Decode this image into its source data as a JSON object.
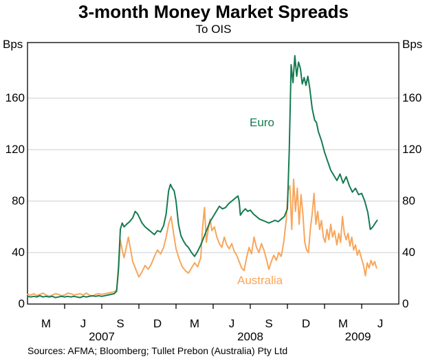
{
  "header": {
    "title": "3-month Money Market Spreads",
    "subtitle": "To OIS"
  },
  "footer": {
    "sources": "Sources: AFMA; Bloomberg; Tullet Prebon (Australia) Pty Ltd"
  },
  "colors": {
    "euro": "#147a50",
    "australia": "#f9a55a",
    "gridline": "#c9ced2",
    "axis": "#000000"
  },
  "chart_data": {
    "type": "line",
    "title": "3-month Money Market Spreads",
    "subtitle": "To OIS",
    "unit_label": "Bps",
    "ylim": [
      0,
      203.2
    ],
    "y_ticks": [
      0,
      40,
      80,
      120,
      160
    ],
    "grid": true,
    "x_axis_note": "x measured in months since Jan 2007; axis spans Jan 2007 to Jul 2009",
    "xlim_months": [
      0,
      30
    ],
    "x_quarter_tick_months": [
      3,
      6,
      9,
      12,
      15,
      18,
      21,
      24,
      27
    ],
    "x_month_labels": [
      {
        "m": 1.5,
        "label": "M"
      },
      {
        "m": 4.5,
        "label": "J"
      },
      {
        "m": 7.5,
        "label": "S"
      },
      {
        "m": 10.5,
        "label": "D"
      },
      {
        "m": 13.5,
        "label": "M"
      },
      {
        "m": 16.5,
        "label": "J"
      },
      {
        "m": 19.5,
        "label": "S"
      },
      {
        "m": 22.5,
        "label": "D"
      },
      {
        "m": 25.5,
        "label": "M"
      },
      {
        "m": 28.5,
        "label": "J"
      }
    ],
    "x_year_labels": [
      {
        "m": 6,
        "label": "2007"
      },
      {
        "m": 18,
        "label": "2008"
      },
      {
        "m": 26.7,
        "label": "2009"
      }
    ],
    "series": [
      {
        "name": "Australia",
        "color": "#f9a55a",
        "points": [
          [
            0,
            7.5
          ],
          [
            0.25,
            7
          ],
          [
            0.5,
            8
          ],
          [
            0.75,
            6.5
          ],
          [
            1,
            7.5
          ],
          [
            1.25,
            8.5
          ],
          [
            1.5,
            7
          ],
          [
            1.75,
            6
          ],
          [
            2,
            7
          ],
          [
            2.25,
            8
          ],
          [
            2.5,
            7.5
          ],
          [
            2.75,
            6.5
          ],
          [
            3,
            7
          ],
          [
            3.25,
            8.5
          ],
          [
            3.5,
            8
          ],
          [
            3.75,
            7
          ],
          [
            4,
            7.5
          ],
          [
            4.25,
            8
          ],
          [
            4.5,
            7
          ],
          [
            4.75,
            8.5
          ],
          [
            5,
            7
          ],
          [
            5.25,
            6
          ],
          [
            5.5,
            7.5
          ],
          [
            5.75,
            8
          ],
          [
            6,
            7.5
          ],
          [
            6.25,
            8
          ],
          [
            6.5,
            8.5
          ],
          [
            6.75,
            9
          ],
          [
            7,
            9.5
          ],
          [
            7.2,
            11
          ],
          [
            7.35,
            25
          ],
          [
            7.5,
            50
          ],
          [
            7.65,
            42
          ],
          [
            7.8,
            36
          ],
          [
            8,
            45
          ],
          [
            8.15,
            52
          ],
          [
            8.3,
            44
          ],
          [
            8.5,
            33
          ],
          [
            8.75,
            27
          ],
          [
            9,
            21
          ],
          [
            9.25,
            25
          ],
          [
            9.5,
            30
          ],
          [
            9.75,
            27
          ],
          [
            10,
            31
          ],
          [
            10.25,
            37
          ],
          [
            10.5,
            42
          ],
          [
            10.75,
            39
          ],
          [
            11,
            44
          ],
          [
            11.2,
            52
          ],
          [
            11.4,
            62
          ],
          [
            11.6,
            68
          ],
          [
            11.8,
            55
          ],
          [
            12,
            43
          ],
          [
            12.25,
            35
          ],
          [
            12.5,
            29
          ],
          [
            12.75,
            26
          ],
          [
            13,
            24
          ],
          [
            13.25,
            28
          ],
          [
            13.5,
            32
          ],
          [
            13.75,
            29
          ],
          [
            14,
            36
          ],
          [
            14.15,
            60
          ],
          [
            14.3,
            75
          ],
          [
            14.45,
            48
          ],
          [
            14.6,
            58
          ],
          [
            14.75,
            66
          ],
          [
            14.9,
            57
          ],
          [
            15.1,
            60
          ],
          [
            15.3,
            52
          ],
          [
            15.5,
            47
          ],
          [
            15.7,
            44
          ],
          [
            15.9,
            52
          ],
          [
            16.1,
            46
          ],
          [
            16.3,
            43
          ],
          [
            16.5,
            47
          ],
          [
            16.7,
            41
          ],
          [
            16.9,
            38
          ],
          [
            17.1,
            33
          ],
          [
            17.3,
            28
          ],
          [
            17.5,
            26
          ],
          [
            17.7,
            36
          ],
          [
            17.9,
            44
          ],
          [
            18.1,
            39
          ],
          [
            18.3,
            52
          ],
          [
            18.5,
            44
          ],
          [
            18.7,
            40
          ],
          [
            18.9,
            47
          ],
          [
            19.1,
            42
          ],
          [
            19.3,
            35
          ],
          [
            19.5,
            27
          ],
          [
            19.7,
            33
          ],
          [
            19.9,
            38
          ],
          [
            20.1,
            34
          ],
          [
            20.3,
            40
          ],
          [
            20.5,
            37
          ],
          [
            20.7,
            48
          ],
          [
            20.9,
            65
          ],
          [
            21.05,
            88
          ],
          [
            21.2,
            92
          ],
          [
            21.35,
            58
          ],
          [
            21.5,
            97
          ],
          [
            21.65,
            72
          ],
          [
            21.8,
            90
          ],
          [
            21.95,
            62
          ],
          [
            22.1,
            85
          ],
          [
            22.25,
            70
          ],
          [
            22.4,
            48
          ],
          [
            22.55,
            42
          ],
          [
            22.7,
            40
          ],
          [
            22.85,
            58
          ],
          [
            23,
            70
          ],
          [
            23.15,
            86
          ],
          [
            23.3,
            62
          ],
          [
            23.45,
            72
          ],
          [
            23.6,
            58
          ],
          [
            23.75,
            65
          ],
          [
            23.9,
            52
          ],
          [
            24.05,
            48
          ],
          [
            24.2,
            58
          ],
          [
            24.35,
            50
          ],
          [
            24.5,
            62
          ],
          [
            24.65,
            52
          ],
          [
            24.8,
            57
          ],
          [
            25,
            46
          ],
          [
            25.15,
            55
          ],
          [
            25.3,
            48
          ],
          [
            25.45,
            68
          ],
          [
            25.6,
            55
          ],
          [
            25.75,
            50
          ],
          [
            25.9,
            55
          ],
          [
            26.05,
            45
          ],
          [
            26.2,
            52
          ],
          [
            26.35,
            42
          ],
          [
            26.5,
            46
          ],
          [
            26.65,
            38
          ],
          [
            26.8,
            42
          ],
          [
            27,
            35
          ],
          [
            27.15,
            30
          ],
          [
            27.3,
            22
          ],
          [
            27.45,
            32
          ],
          [
            27.6,
            28
          ],
          [
            27.75,
            34
          ],
          [
            27.9,
            30
          ],
          [
            28.05,
            33
          ],
          [
            28.2,
            28
          ]
        ]
      },
      {
        "name": "Euro",
        "color": "#147a50",
        "points": [
          [
            0,
            6
          ],
          [
            0.25,
            5.5
          ],
          [
            0.5,
            6
          ],
          [
            0.75,
            5.5
          ],
          [
            1,
            6.5
          ],
          [
            1.25,
            5.5
          ],
          [
            1.5,
            6
          ],
          [
            1.75,
            5.5
          ],
          [
            2,
            6
          ],
          [
            2.25,
            5
          ],
          [
            2.5,
            5.5
          ],
          [
            2.75,
            6
          ],
          [
            3,
            5.5
          ],
          [
            3.25,
            6
          ],
          [
            3.5,
            5.5
          ],
          [
            3.75,
            6
          ],
          [
            4,
            5.5
          ],
          [
            4.25,
            5
          ],
          [
            4.5,
            6
          ],
          [
            4.75,
            5.5
          ],
          [
            5,
            6
          ],
          [
            5.25,
            6.5
          ],
          [
            5.5,
            6
          ],
          [
            5.75,
            6.5
          ],
          [
            6,
            6
          ],
          [
            6.25,
            6.5
          ],
          [
            6.5,
            7
          ],
          [
            6.75,
            7.5
          ],
          [
            7,
            8
          ],
          [
            7.2,
            10
          ],
          [
            7.35,
            28
          ],
          [
            7.5,
            58
          ],
          [
            7.65,
            63
          ],
          [
            7.8,
            60
          ],
          [
            8,
            62
          ],
          [
            8.25,
            64
          ],
          [
            8.5,
            67
          ],
          [
            8.7,
            72
          ],
          [
            8.9,
            70
          ],
          [
            9,
            68
          ],
          [
            9.25,
            63
          ],
          [
            9.5,
            60
          ],
          [
            9.75,
            58
          ],
          [
            10,
            56
          ],
          [
            10.25,
            54
          ],
          [
            10.5,
            57
          ],
          [
            10.75,
            56
          ],
          [
            11,
            61
          ],
          [
            11.2,
            70
          ],
          [
            11.4,
            88
          ],
          [
            11.55,
            93
          ],
          [
            11.7,
            90
          ],
          [
            11.85,
            88
          ],
          [
            12,
            80
          ],
          [
            12.2,
            62
          ],
          [
            12.4,
            53
          ],
          [
            12.6,
            49
          ],
          [
            12.8,
            46
          ],
          [
            13,
            44
          ],
          [
            13.25,
            40
          ],
          [
            13.5,
            37
          ],
          [
            13.75,
            41
          ],
          [
            14,
            46
          ],
          [
            14.25,
            52
          ],
          [
            14.5,
            58
          ],
          [
            14.75,
            64
          ],
          [
            15,
            68
          ],
          [
            15.25,
            72
          ],
          [
            15.5,
            76
          ],
          [
            15.75,
            74
          ],
          [
            16,
            75
          ],
          [
            16.25,
            78
          ],
          [
            16.5,
            80
          ],
          [
            16.75,
            82
          ],
          [
            17,
            84
          ],
          [
            17.1,
            80
          ],
          [
            17.2,
            69
          ],
          [
            17.4,
            72
          ],
          [
            17.6,
            74
          ],
          [
            17.8,
            72
          ],
          [
            18,
            73
          ],
          [
            18.25,
            70
          ],
          [
            18.5,
            68
          ],
          [
            18.75,
            66
          ],
          [
            19,
            65
          ],
          [
            19.25,
            64
          ],
          [
            19.5,
            63
          ],
          [
            19.75,
            64
          ],
          [
            20,
            65
          ],
          [
            20.25,
            64
          ],
          [
            20.5,
            66
          ],
          [
            20.75,
            68
          ],
          [
            21,
            74
          ],
          [
            21.15,
            120
          ],
          [
            21.3,
            186
          ],
          [
            21.45,
            172
          ],
          [
            21.6,
            193
          ],
          [
            21.75,
            177
          ],
          [
            21.9,
            188
          ],
          [
            22.05,
            183
          ],
          [
            22.2,
            171
          ],
          [
            22.35,
            176
          ],
          [
            22.5,
            170
          ],
          [
            22.65,
            177
          ],
          [
            22.8,
            168
          ],
          [
            23,
            152
          ],
          [
            23.2,
            143
          ],
          [
            23.35,
            141
          ],
          [
            23.5,
            134
          ],
          [
            23.75,
            127
          ],
          [
            24,
            118
          ],
          [
            24.25,
            111
          ],
          [
            24.5,
            104
          ],
          [
            24.75,
            100
          ],
          [
            25,
            96
          ],
          [
            25.25,
            101
          ],
          [
            25.5,
            94
          ],
          [
            25.75,
            99
          ],
          [
            26,
            92
          ],
          [
            26.25,
            87
          ],
          [
            26.5,
            90
          ],
          [
            26.75,
            85
          ],
          [
            27,
            86
          ],
          [
            27.25,
            80
          ],
          [
            27.5,
            71
          ],
          [
            27.7,
            58
          ],
          [
            27.9,
            60
          ],
          [
            28.1,
            63
          ],
          [
            28.25,
            65
          ]
        ]
      }
    ],
    "legend_position": "inline-labels"
  }
}
